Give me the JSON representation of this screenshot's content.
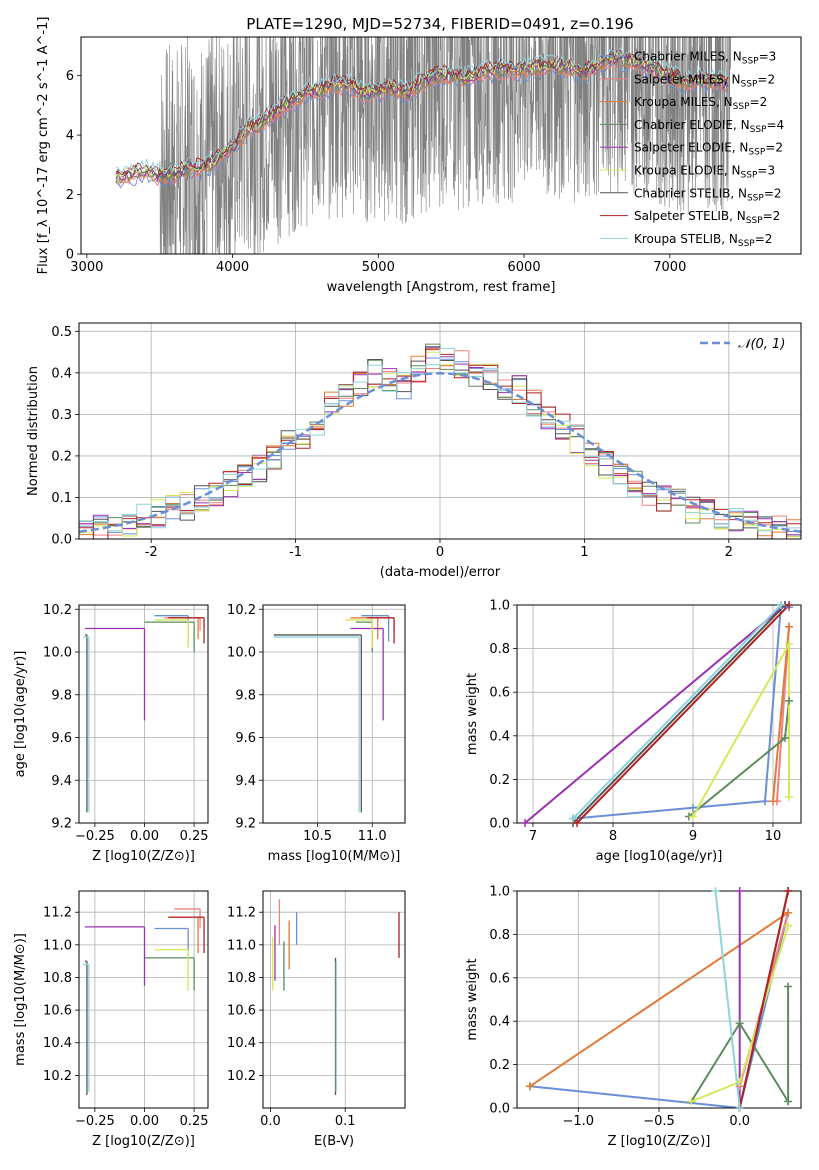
{
  "figure": {
    "title": "PLATE=1290, MJD=52734, FIBERID=0491, z=0.196",
    "colors": {
      "Chabrier MILES": "#6a8fd6",
      "Salpeter MILES": "#f08080",
      "Kroupa MILES": "#e07b39",
      "Chabrier ELODIE": "#5b8c5a",
      "Salpeter ELODIE": "#9b30b0",
      "Kroupa ELODIE": "#d4e85a",
      "Chabrier STELIB": "#555555",
      "Salpeter STELIB": "#b22222",
      "Kroupa STELIB": "#8fd3dc",
      "data": "#808080",
      "gaussian": "#6a8fd6"
    }
  },
  "chart_data": [
    {
      "id": "spectrum",
      "type": "line",
      "xlabel": "wavelength [Angstrom, rest frame]",
      "ylabel": "Flux [f_λ 10^-17 erg cm^-2 s^-1 A^-1]",
      "xlim": [
        2960,
        7900
      ],
      "ylim": [
        0,
        7.3
      ],
      "xticks": [
        3000,
        4000,
        5000,
        6000,
        7000
      ],
      "yticks": [
        0,
        2,
        4,
        6
      ],
      "grid": false,
      "legend_position": "upper-right",
      "legend": [
        {
          "name": "Chabrier MILES",
          "nssp": "3"
        },
        {
          "name": "Salpeter MILES",
          "nssp": "2"
        },
        {
          "name": "Kroupa MILES",
          "nssp": "2"
        },
        {
          "name": "Chabrier ELODIE",
          "nssp": "4"
        },
        {
          "name": "Salpeter ELODIE",
          "nssp": "2"
        },
        {
          "name": "Kroupa ELODIE",
          "nssp": "3"
        },
        {
          "name": "Chabrier STELIB",
          "nssp": "2"
        },
        {
          "name": "Salpeter STELIB",
          "nssp": "2"
        },
        {
          "name": "Kroupa STELIB",
          "nssp": "2"
        }
      ],
      "model_wavelength": [
        3200,
        3300,
        3400,
        3500,
        3600,
        3700,
        3800,
        3900,
        4000,
        4100,
        4200,
        4300,
        4400,
        4500,
        4600,
        4700,
        4800,
        4900,
        5000,
        5100,
        5200,
        5300,
        5400,
        5500,
        5600,
        5700,
        5800,
        5900,
        6000,
        6100,
        6200,
        6300,
        6400,
        6500,
        6600,
        6700,
        6800,
        6900,
        7000,
        7100,
        7200,
        7300,
        7400
      ],
      "model_flux": [
        2.6,
        2.7,
        2.8,
        2.6,
        2.7,
        2.9,
        2.9,
        3.2,
        3.6,
        4.2,
        4.4,
        4.8,
        5.1,
        5.4,
        5.5,
        5.7,
        5.7,
        5.4,
        5.5,
        5.6,
        5.4,
        5.8,
        6.0,
        6.0,
        5.9,
        6.1,
        6.2,
        6.2,
        6.2,
        6.3,
        6.3,
        6.3,
        6.1,
        6.3,
        6.6,
        6.5,
        6.4,
        6.2,
        6.0,
        5.8,
        5.9,
        5.8,
        5.7
      ],
      "data_range": [
        3500,
        7420
      ]
    },
    {
      "id": "residual-histogram",
      "type": "line",
      "xlabel": "(data-model)/error",
      "ylabel": "Normed distribution",
      "xlim": [
        -2.5,
        2.5
      ],
      "ylim": [
        0,
        0.52
      ],
      "xticks": [
        -2,
        -1,
        0,
        1,
        2
      ],
      "yticks": [
        0.0,
        0.1,
        0.2,
        0.3,
        0.4,
        0.5
      ],
      "grid": true,
      "legend_position": "upper-right",
      "legend": [
        {
          "name": "N(0,1)"
        }
      ],
      "bin_width": 0.1,
      "hist_centers": [
        -2.45,
        -2.35,
        -2.25,
        -2.15,
        -2.05,
        -1.95,
        -1.85,
        -1.75,
        -1.65,
        -1.55,
        -1.45,
        -1.35,
        -1.25,
        -1.15,
        -1.05,
        -0.95,
        -0.85,
        -0.75,
        -0.65,
        -0.55,
        -0.45,
        -0.35,
        -0.25,
        -0.15,
        -0.05,
        0.05,
        0.15,
        0.25,
        0.35,
        0.45,
        0.55,
        0.65,
        0.75,
        0.85,
        0.95,
        1.05,
        1.15,
        1.25,
        1.35,
        1.45,
        1.55,
        1.65,
        1.75,
        1.85,
        1.95,
        2.05,
        2.15,
        2.25,
        2.35,
        2.45
      ],
      "hist_base": [
        0.02,
        0.025,
        0.03,
        0.04,
        0.05,
        0.06,
        0.07,
        0.08,
        0.1,
        0.11,
        0.13,
        0.15,
        0.17,
        0.2,
        0.23,
        0.25,
        0.28,
        0.32,
        0.35,
        0.38,
        0.4,
        0.38,
        0.37,
        0.41,
        0.44,
        0.43,
        0.42,
        0.4,
        0.39,
        0.37,
        0.36,
        0.33,
        0.3,
        0.27,
        0.24,
        0.21,
        0.18,
        0.16,
        0.13,
        0.11,
        0.1,
        0.09,
        0.07,
        0.06,
        0.05,
        0.04,
        0.035,
        0.03,
        0.025,
        0.02
      ]
    },
    {
      "id": "age-vs-z",
      "type": "scatter",
      "xlabel": "Z [log10(Z/Z⊙)]",
      "ylabel": "age [log10(age/yr)]",
      "xlim": [
        -0.33,
        0.32
      ],
      "ylim": [
        9.2,
        10.22
      ],
      "xticks": [
        -0.25,
        0.0,
        0.25
      ],
      "xticklabels": [
        "−0.25",
        "0.00",
        "0.25"
      ],
      "yticks": [
        9.2,
        9.4,
        9.6,
        9.8,
        10.0,
        10.2
      ],
      "grid": true,
      "points": [
        {
          "model": "Chabrier MILES",
          "x": 0.22,
          "y": 10.17,
          "x_lo": 0.05,
          "y_lo": 10.05
        },
        {
          "model": "Salpeter MILES",
          "x": 0.28,
          "y": 10.16,
          "x_lo": 0.1,
          "y_lo": 10.1
        },
        {
          "model": "Kroupa MILES",
          "x": 0.27,
          "y": 10.16,
          "x_lo": 0.12,
          "y_lo": 10.06
        },
        {
          "model": "Chabrier ELODIE",
          "x": 0.25,
          "y": 10.14,
          "x_lo": 0.0,
          "y_lo": 10.0
        },
        {
          "model": "Salpeter ELODIE",
          "x": 0.0,
          "y": 10.11,
          "x_lo": -0.3,
          "y_lo": 9.68
        },
        {
          "model": "Kroupa ELODIE",
          "x": 0.22,
          "y": 10.15,
          "x_lo": 0.05,
          "y_lo": 10.02
        },
        {
          "model": "Chabrier STELIB",
          "x": -0.29,
          "y": 10.08,
          "x_lo": -0.3,
          "y_lo": 9.25
        },
        {
          "model": "Salpeter STELIB",
          "x": 0.3,
          "y": 10.16,
          "x_lo": 0.12,
          "y_lo": 10.04
        },
        {
          "model": "Kroupa STELIB",
          "x": -0.28,
          "y": 10.07,
          "x_lo": -0.31,
          "y_lo": 9.25
        }
      ]
    },
    {
      "id": "age-vs-mass",
      "type": "scatter",
      "xlabel": "mass [log10(M/M⊙)]",
      "ylabel": "",
      "xlim": [
        10.0,
        11.3
      ],
      "ylim": [
        9.2,
        10.22
      ],
      "xticks": [
        10.5,
        11.0
      ],
      "xticklabels": [
        "10.5",
        "11.0"
      ],
      "yticks": [
        9.2,
        9.4,
        9.6,
        9.8,
        10.0,
        10.2
      ],
      "grid": true,
      "points": [
        {
          "model": "Chabrier MILES",
          "x": 11.15,
          "y": 10.17,
          "x_lo": 10.9,
          "y_lo": 10.05
        },
        {
          "model": "Salpeter MILES",
          "x": 11.2,
          "y": 10.16,
          "x_lo": 10.95,
          "y_lo": 10.1
        },
        {
          "model": "Kroupa MILES",
          "x": 11.05,
          "y": 10.16,
          "x_lo": 10.8,
          "y_lo": 10.06
        },
        {
          "model": "Chabrier ELODIE",
          "x": 11.0,
          "y": 10.14,
          "x_lo": 10.85,
          "y_lo": 10.0
        },
        {
          "model": "Salpeter ELODIE",
          "x": 11.1,
          "y": 10.11,
          "x_lo": 10.8,
          "y_lo": 9.68
        },
        {
          "model": "Kroupa ELODIE",
          "x": 11.0,
          "y": 10.15,
          "x_lo": 10.75,
          "y_lo": 10.02
        },
        {
          "model": "Chabrier STELIB",
          "x": 10.9,
          "y": 10.08,
          "x_lo": 10.1,
          "y_lo": 9.25
        },
        {
          "model": "Salpeter STELIB",
          "x": 11.2,
          "y": 10.16,
          "x_lo": 10.95,
          "y_lo": 10.04
        },
        {
          "model": "Kroupa STELIB",
          "x": 10.88,
          "y": 10.07,
          "x_lo": 10.1,
          "y_lo": 9.25
        }
      ]
    },
    {
      "id": "weight-vs-age",
      "type": "line",
      "xlabel": "age [log10(age/yr)]",
      "ylabel": "mass weight",
      "xlim": [
        6.8,
        10.35
      ],
      "ylim": [
        0,
        1.0
      ],
      "xticks": [
        7,
        8,
        9,
        10
      ],
      "yticks": [
        0.0,
        0.2,
        0.4,
        0.6,
        0.8,
        1.0
      ],
      "grid": true,
      "series": [
        {
          "model": "Chabrier MILES",
          "x": [
            7.5,
            9.0,
            9.9,
            10.1,
            10.2
          ],
          "y": [
            0.02,
            0.07,
            0.1,
            1.0,
            0.99
          ]
        },
        {
          "model": "Salpeter MILES",
          "x": [
            10.05,
            10.2
          ],
          "y": [
            0.1,
            0.9
          ]
        },
        {
          "model": "Kroupa MILES",
          "x": [
            10.0,
            10.2
          ],
          "y": [
            0.1,
            0.9
          ]
        },
        {
          "model": "Chabrier ELODIE",
          "x": [
            8.95,
            10.15,
            10.2
          ],
          "y": [
            0.03,
            0.39,
            0.56
          ]
        },
        {
          "model": "Salpeter ELODIE",
          "x": [
            6.9,
            10.15
          ],
          "y": [
            0.0,
            1.0
          ]
        },
        {
          "model": "Kroupa ELODIE",
          "x": [
            9.0,
            10.2,
            10.2
          ],
          "y": [
            0.03,
            0.82,
            0.12
          ]
        },
        {
          "model": "Chabrier STELIB",
          "x": [
            7.5,
            10.15
          ],
          "y": [
            0.0,
            1.0
          ]
        },
        {
          "model": "Salpeter STELIB",
          "x": [
            7.55,
            10.2
          ],
          "y": [
            0.0,
            1.0
          ]
        },
        {
          "model": "Kroupa STELIB",
          "x": [
            7.5,
            10.1
          ],
          "y": [
            0.02,
            1.0
          ]
        }
      ]
    },
    {
      "id": "mass-vs-z",
      "type": "scatter",
      "xlabel": "Z [log10(Z/Z⊙)]",
      "ylabel": "mass [log10(M/M⊙)]",
      "xlim": [
        -0.33,
        0.32
      ],
      "ylim": [
        10.0,
        11.33
      ],
      "xticks": [
        -0.25,
        0.0,
        0.25
      ],
      "xticklabels": [
        "−0.25",
        "0.00",
        "0.25"
      ],
      "yticks": [
        10.2,
        10.4,
        10.6,
        10.8,
        11.0,
        11.2
      ],
      "grid": true,
      "points": [
        {
          "model": "Chabrier MILES",
          "x": 0.22,
          "y": 11.1,
          "x_lo": 0.05,
          "y_lo": 10.9
        },
        {
          "model": "Salpeter MILES",
          "x": 0.28,
          "y": 11.22,
          "x_lo": 0.15,
          "y_lo": 11.1
        },
        {
          "model": "Kroupa MILES",
          "x": 0.27,
          "y": 11.17,
          "x_lo": 0.12,
          "y_lo": 10.95
        },
        {
          "model": "Chabrier ELODIE",
          "x": 0.25,
          "y": 10.92,
          "x_lo": 0.0,
          "y_lo": 10.72
        },
        {
          "model": "Salpeter ELODIE",
          "x": 0.0,
          "y": 11.11,
          "x_lo": -0.3,
          "y_lo": 10.75
        },
        {
          "model": "Kroupa ELODIE",
          "x": 0.22,
          "y": 10.97,
          "x_lo": 0.05,
          "y_lo": 10.72
        },
        {
          "model": "Chabrier STELIB",
          "x": -0.29,
          "y": 10.9,
          "x_lo": -0.3,
          "y_lo": 10.08
        },
        {
          "model": "Salpeter STELIB",
          "x": 0.3,
          "y": 11.17,
          "x_lo": 0.12,
          "y_lo": 10.95
        },
        {
          "model": "Kroupa STELIB",
          "x": -0.28,
          "y": 10.88,
          "x_lo": -0.31,
          "y_lo": 10.1
        }
      ]
    },
    {
      "id": "mass-vs-ebv",
      "type": "scatter",
      "xlabel": "E(B-V)",
      "ylabel": "",
      "xlim": [
        -0.01,
        0.18
      ],
      "ylim": [
        10.0,
        11.33
      ],
      "xticks": [
        0.0,
        0.1
      ],
      "xticklabels": [
        "0.0",
        "0.1"
      ],
      "yticks": [
        10.2,
        10.4,
        10.6,
        10.8,
        11.0,
        11.2
      ],
      "grid": true,
      "bars": [
        {
          "model": "Chabrier MILES",
          "x": 0.035,
          "y_lo": 11.0,
          "y_hi": 11.2
        },
        {
          "model": "Salpeter MILES",
          "x": 0.012,
          "y_lo": 11.0,
          "y_hi": 11.28
        },
        {
          "model": "Kroupa MILES",
          "x": 0.025,
          "y_lo": 10.85,
          "y_hi": 11.15
        },
        {
          "model": "Chabrier ELODIE",
          "x": 0.018,
          "y_lo": 10.72,
          "y_hi": 11.02
        },
        {
          "model": "Salpeter ELODIE",
          "x": 0.006,
          "y_lo": 10.78,
          "y_hi": 11.12
        },
        {
          "model": "Kroupa ELODIE",
          "x": 0.003,
          "y_lo": 10.72,
          "y_hi": 11.05
        },
        {
          "model": "Chabrier STELIB",
          "x": 0.087,
          "y_lo": 10.08,
          "y_hi": 10.92
        },
        {
          "model": "Salpeter STELIB",
          "x": 0.172,
          "y_lo": 10.92,
          "y_hi": 11.2
        },
        {
          "model": "Kroupa STELIB",
          "x": 0.088,
          "y_lo": 10.1,
          "y_hi": 10.9
        }
      ]
    },
    {
      "id": "weight-vs-z",
      "type": "line",
      "xlabel": "Z [log10(Z/Z⊙)]",
      "ylabel": "mass weight",
      "xlim": [
        -1.38,
        0.38
      ],
      "ylim": [
        0,
        1.0
      ],
      "xticks": [
        -1.0,
        -0.5,
        0.0
      ],
      "xticklabels": [
        "−1.0",
        "−0.5",
        "0.0"
      ],
      "yticks": [
        0.0,
        0.2,
        0.4,
        0.6,
        0.8,
        1.0
      ],
      "grid": true,
      "series": [
        {
          "model": "Chabrier MILES",
          "x": [
            -1.3,
            0.0,
            0.3
          ],
          "y": [
            0.1,
            0.0,
            0.9
          ]
        },
        {
          "model": "Salpeter MILES",
          "x": [
            0.0,
            0.3
          ],
          "y": [
            0.1,
            0.9
          ]
        },
        {
          "model": "Kroupa MILES",
          "x": [
            -1.3,
            0.3
          ],
          "y": [
            0.1,
            0.9
          ]
        },
        {
          "model": "Chabrier ELODIE",
          "x": [
            -0.3,
            0.0,
            0.3,
            0.3
          ],
          "y": [
            0.03,
            0.39,
            0.03,
            0.56
          ]
        },
        {
          "model": "Salpeter ELODIE",
          "x": [
            0.0,
            0.0
          ],
          "y": [
            0.0,
            1.0
          ]
        },
        {
          "model": "Kroupa ELODIE",
          "x": [
            -0.3,
            0.0,
            0.3
          ],
          "y": [
            0.03,
            0.12,
            0.84
          ]
        },
        {
          "model": "Chabrier STELIB",
          "x": [
            0.0,
            0.3
          ],
          "y": [
            0.0,
            1.0
          ]
        },
        {
          "model": "Salpeter STELIB",
          "x": [
            0.0,
            0.3
          ],
          "y": [
            0.0,
            1.0
          ]
        },
        {
          "model": "Kroupa STELIB",
          "x": [
            -0.15,
            0.0
          ],
          "y": [
            1.0,
            0.0
          ]
        }
      ]
    }
  ]
}
